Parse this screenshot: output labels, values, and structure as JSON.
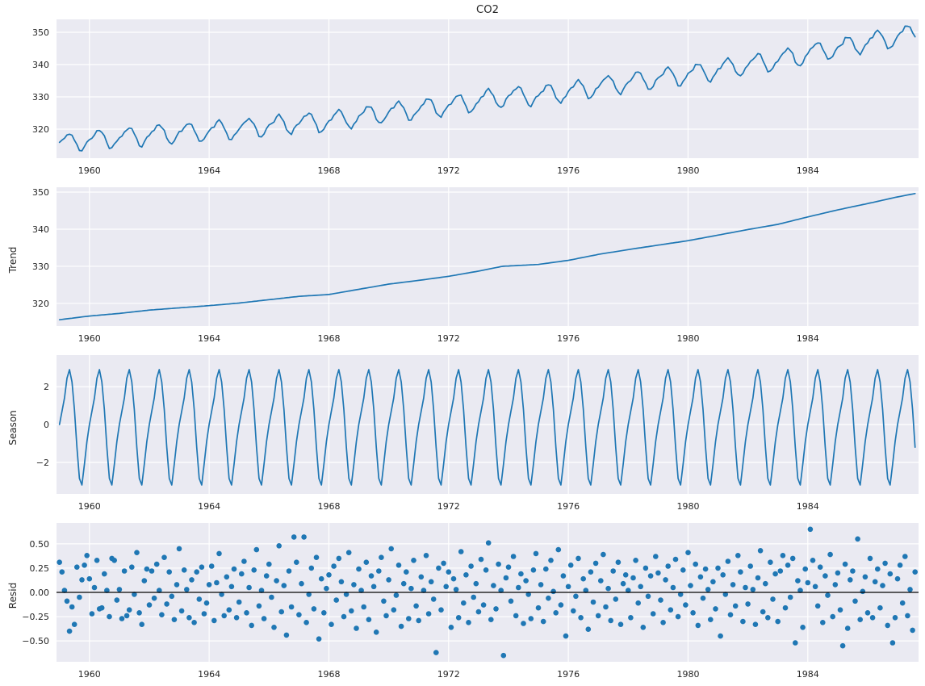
{
  "chart_data": {
    "type": "line",
    "subtype": "seasonal-decomposition",
    "title": "CO2",
    "figure_bg": "#ffffff",
    "axes_bg": "#eaeaf2",
    "grid_color": "#ffffff",
    "line_color": "#1f77b4",
    "marker_color": "#1f77b4",
    "zero_line_color": "#000000",
    "text_color": "#262626",
    "x_frequency": "monthly",
    "x_start_year": 1959.0,
    "xlim": [
      1958.9,
      1987.7
    ],
    "xticks": [
      {
        "v": 1960,
        "label": "1960"
      },
      {
        "v": 1964,
        "label": "1964"
      },
      {
        "v": 1968,
        "label": "1968"
      },
      {
        "v": 1972,
        "label": "1972"
      },
      {
        "v": 1976,
        "label": "1976"
      },
      {
        "v": 1980,
        "label": "1980"
      },
      {
        "v": 1984,
        "label": "1984"
      }
    ],
    "panels": [
      {
        "name": "observed",
        "series": "observed",
        "kind": "line",
        "ylabel": "",
        "ylim": [
          311.0,
          354.0
        ],
        "yticks": [
          {
            "v": 320,
            "label": "320"
          },
          {
            "v": 330,
            "label": "330"
          },
          {
            "v": 340,
            "label": "340"
          },
          {
            "v": 350,
            "label": "350"
          }
        ]
      },
      {
        "name": "trend",
        "series": "trend",
        "kind": "line",
        "ylabel": "Trend",
        "ylim": [
          313.9,
          351.3
        ],
        "yticks": [
          {
            "v": 320,
            "label": "320"
          },
          {
            "v": 330,
            "label": "330"
          },
          {
            "v": 340,
            "label": "340"
          },
          {
            "v": 350,
            "label": "350"
          }
        ]
      },
      {
        "name": "seasonal",
        "series": "seasonal",
        "kind": "line",
        "ylabel": "Season",
        "ylim": [
          -3.67,
          3.67
        ],
        "yticks": [
          {
            "v": -2,
            "label": "−2"
          },
          {
            "v": 0,
            "label": "0"
          },
          {
            "v": 2,
            "label": "2"
          }
        ]
      },
      {
        "name": "residual",
        "series": "residual",
        "kind": "scatter",
        "ylabel": "Resid",
        "zero_line": true,
        "ylim": [
          -0.715,
          0.715
        ],
        "yticks": [
          {
            "v": 0.5,
            "label": "0.50"
          },
          {
            "v": 0.25,
            "label": "0.25"
          },
          {
            "v": 0,
            "label": "0.00"
          },
          {
            "v": -0.25,
            "label": "−0.25"
          },
          {
            "v": -0.5,
            "label": "−0.50"
          }
        ]
      }
    ],
    "observed_formula": "trend + seasonal + residual",
    "trend_keypoints": [
      [
        1959.0,
        315.6
      ],
      [
        1960,
        316.6
      ],
      [
        1961,
        317.3
      ],
      [
        1962,
        318.2
      ],
      [
        1963,
        318.8
      ],
      [
        1964,
        319.4
      ],
      [
        1965,
        320.1
      ],
      [
        1966,
        321.0
      ],
      [
        1967,
        321.9
      ],
      [
        1968,
        322.4
      ],
      [
        1969,
        323.8
      ],
      [
        1970,
        325.2
      ],
      [
        1971,
        326.2
      ],
      [
        1972,
        327.3
      ],
      [
        1973,
        328.7
      ],
      [
        1973.8,
        330.0
      ],
      [
        1975,
        330.5
      ],
      [
        1976,
        331.6
      ],
      [
        1977,
        333.2
      ],
      [
        1978,
        334.5
      ],
      [
        1979,
        335.7
      ],
      [
        1980,
        336.9
      ],
      [
        1981,
        338.4
      ],
      [
        1982,
        339.9
      ],
      [
        1983,
        341.3
      ],
      [
        1984,
        343.3
      ],
      [
        1985,
        345.2
      ],
      [
        1986,
        346.9
      ],
      [
        1987,
        348.7
      ],
      [
        1987.583,
        349.6
      ]
    ],
    "seasonal_cycle": [
      0.0,
      0.7,
      1.4,
      2.45,
      2.9,
      2.25,
      0.8,
      -1.2,
      -2.85,
      -3.2,
      -2.1,
      -0.9
    ],
    "residuals": [
      0.31,
      0.21,
      0.02,
      -0.09,
      -0.4,
      -0.15,
      -0.33,
      0.26,
      -0.05,
      0.13,
      0.28,
      0.38,
      0.14,
      -0.22,
      0.05,
      0.33,
      -0.17,
      -0.16,
      0.19,
      0.02,
      -0.25,
      0.35,
      0.33,
      -0.08,
      0.03,
      -0.27,
      0.22,
      -0.24,
      -0.18,
      0.26,
      -0.02,
      0.41,
      -0.21,
      -0.33,
      0.12,
      0.24,
      -0.13,
      0.22,
      -0.06,
      0.29,
      0.02,
      -0.23,
      0.36,
      -0.12,
      0.21,
      -0.04,
      -0.28,
      0.08,
      0.45,
      -0.19,
      0.23,
      0.03,
      -0.26,
      0.13,
      -0.31,
      0.21,
      -0.07,
      0.26,
      -0.22,
      -0.11,
      0.08,
      0.27,
      -0.29,
      0.1,
      0.4,
      -0.02,
      -0.24,
      0.16,
      -0.18,
      0.06,
      0.24,
      -0.26,
      -0.1,
      0.19,
      0.32,
      -0.21,
      0.05,
      -0.34,
      0.23,
      0.44,
      -0.14,
      0.02,
      -0.27,
      0.17,
      0.29,
      -0.05,
      -0.36,
      0.12,
      0.48,
      -0.2,
      0.07,
      -0.44,
      0.22,
      -0.15,
      0.57,
      0.31,
      -0.23,
      0.09,
      0.57,
      -0.31,
      -0.02,
      0.25,
      -0.17,
      0.36,
      -0.48,
      0.14,
      -0.21,
      0.04,
      0.18,
      -0.33,
      0.27,
      -0.08,
      0.35,
      0.11,
      -0.25,
      -0.02,
      0.41,
      -0.19,
      0.08,
      -0.37,
      0.24,
      0.02,
      -0.15,
      0.31,
      -0.28,
      0.17,
      0.06,
      -0.41,
      0.22,
      0.36,
      -0.09,
      -0.24,
      0.13,
      0.45,
      -0.18,
      -0.03,
      0.28,
      -0.35,
      0.09,
      0.21,
      -0.27,
      0.04,
      0.33,
      -0.14,
      -0.29,
      0.16,
      0.02,
      0.38,
      -0.22,
      0.11,
      -0.07,
      -0.62,
      0.25,
      -0.18,
      0.3,
      0.06,
      0.21,
      -0.36,
      0.14,
      0.03,
      -0.26,
      0.42,
      -0.11,
      0.18,
      -0.31,
      0.27,
      -0.05,
      0.09,
      -0.2,
      0.34,
      -0.13,
      0.23,
      0.51,
      -0.28,
      0.07,
      -0.17,
      0.29,
      0.02,
      -0.65,
      0.15,
      0.26,
      -0.09,
      0.37,
      -0.24,
      0.05,
      0.19,
      -0.32,
      0.12,
      -0.02,
      -0.27,
      0.23,
      0.4,
      -0.16,
      0.08,
      -0.3,
      0.24,
      -0.06,
      0.33,
      0.01,
      -0.21,
      0.44,
      -0.13,
      0.17,
      -0.45,
      0.06,
      0.28,
      -0.19,
      -0.04,
      0.35,
      -0.26,
      0.14,
      0.02,
      -0.38,
      0.21,
      -0.1,
      0.3,
      -0.24,
      0.12,
      0.39,
      -0.15,
      0.04,
      -0.29,
      0.22,
      -0.07,
      0.31,
      -0.33,
      0.09,
      0.18,
      0.02,
      -0.26,
      0.15,
      0.33,
      -0.11,
      0.06,
      -0.36,
      0.25,
      -0.04,
      0.17,
      -0.22,
      0.37,
      0.2,
      -0.08,
      -0.31,
      0.13,
      0.27,
      -0.18,
      0.05,
      0.34,
      -0.25,
      -0.02,
      0.23,
      -0.13,
      0.41,
      0.07,
      -0.21,
      0.29,
      -0.34,
      0.16,
      -0.06,
      0.24,
      0.03,
      -0.28,
      0.11,
      -0.17,
      0.25,
      -0.45,
      0.18,
      -0.02,
      0.32,
      -0.23,
      0.08,
      -0.14,
      0.38,
      0.21,
      -0.3,
      0.05,
      -0.12,
      0.27,
      0.03,
      -0.33,
      0.15,
      0.43,
      -0.2,
      0.09,
      -0.26,
      0.31,
      -0.07,
      0.19,
      -0.3,
      0.22,
      0.38,
      -0.16,
      0.28,
      -0.05,
      0.35,
      -0.52,
      0.12,
      0.02,
      -0.36,
      0.24,
      0.1,
      0.65,
      0.33,
      0.06,
      -0.14,
      0.26,
      -0.31,
      0.17,
      -0.03,
      0.39,
      -0.25,
      0.08,
      0.2,
      -0.18,
      -0.55,
      0.29,
      -0.37,
      0.13,
      0.22,
      -0.09,
      0.55,
      -0.28,
      0.01,
      0.16,
      -0.21,
      0.35,
      -0.26,
      0.11,
      0.24,
      -0.16,
      0.07,
      0.3,
      -0.34,
      0.19,
      -0.52,
      -0.26,
      0.14,
      0.28,
      -0.11,
      0.37,
      -0.24,
      0.03,
      -0.39,
      0.21
    ]
  }
}
